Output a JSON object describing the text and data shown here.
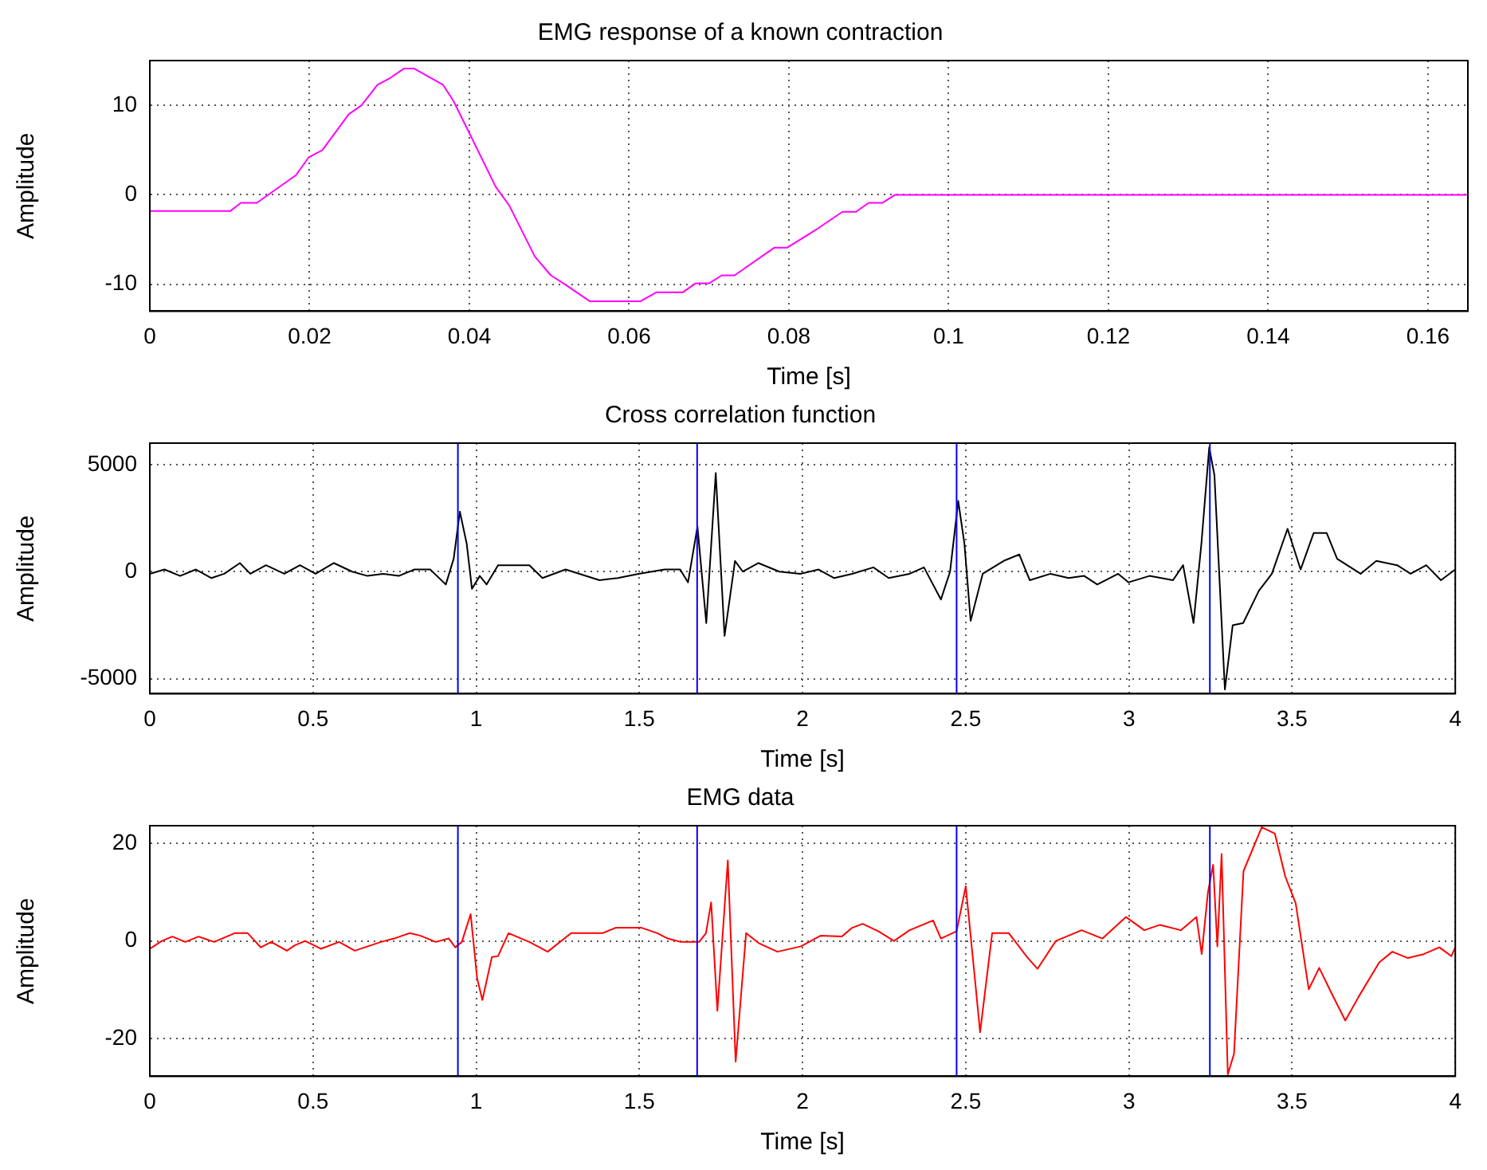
{
  "chart_data": [
    {
      "type": "line",
      "title": "EMG response of a known contraction",
      "xlabel": "Time [s]",
      "ylabel": "Amplitude",
      "xlim": [
        0,
        0.165
      ],
      "xticks": [
        0,
        0.02,
        0.04,
        0.06,
        0.08,
        0.1,
        0.12,
        0.14,
        0.16
      ],
      "ylim": [
        -13,
        15
      ],
      "yticks": [
        -10,
        0,
        10
      ],
      "grid": true,
      "line_style": "solid",
      "series": [
        {
          "color": "#ff00ff",
          "x": [
            0,
            0.0101,
            0.0114,
            0.0134,
            0.0183,
            0.0199,
            0.0216,
            0.0249,
            0.0265,
            0.0285,
            0.03,
            0.0318,
            0.0331,
            0.0367,
            0.038,
            0.04,
            0.0433,
            0.045,
            0.0482,
            0.0502,
            0.0518,
            0.0551,
            0.0614,
            0.0634,
            0.0667,
            0.0683,
            0.07,
            0.0716,
            0.0732,
            0.0782,
            0.0798,
            0.0834,
            0.0867,
            0.0884,
            0.09,
            0.0917,
            0.0933,
            0.165
          ],
          "values": [
            -1.8,
            -1.8,
            -0.9,
            -0.9,
            2.2,
            4.2,
            5,
            9,
            10,
            12.3,
            13,
            14.1,
            14.1,
            12.3,
            10.5,
            6.9,
            0.9,
            -1.2,
            -6.9,
            -9,
            -9.9,
            -11.9,
            -11.9,
            -10.9,
            -10.9,
            -9.9,
            -9.9,
            -9,
            -9,
            -5.9,
            -5.9,
            -3.9,
            -1.9,
            -1.9,
            -0.9,
            -0.9,
            0,
            0
          ]
        }
      ]
    },
    {
      "type": "line",
      "title": "Cross correlation function",
      "xlabel": "Time [s]",
      "ylabel": "Amplitude",
      "xlim": [
        0,
        4
      ],
      "xticks": [
        0,
        0.5,
        1,
        1.5,
        2,
        2.5,
        3,
        3.5,
        4
      ],
      "ylim": [
        -5700,
        6000
      ],
      "yticks": [
        -5000,
        0,
        5000
      ],
      "grid": true,
      "line_style": "solid",
      "ref_lines": [
        {
          "axis": "x",
          "value": 0.944,
          "color": "#0000ff"
        },
        {
          "axis": "x",
          "value": 1.677,
          "color": "#0000ff"
        },
        {
          "axis": "x",
          "value": 2.472,
          "color": "#0000ff"
        },
        {
          "axis": "x",
          "value": 3.248,
          "color": "#0000ff"
        }
      ],
      "series": [
        {
          "color": "#000000",
          "x": [
            0,
            0.045,
            0.093,
            0.141,
            0.189,
            0.228,
            0.276,
            0.308,
            0.356,
            0.412,
            0.46,
            0.508,
            0.564,
            0.62,
            0.667,
            0.715,
            0.763,
            0.811,
            0.859,
            0.907,
            0.931,
            0.95,
            0.971,
            0.987,
            1.011,
            1.032,
            1.067,
            1.163,
            1.203,
            1.274,
            1.378,
            1.434,
            1.498,
            1.577,
            1.625,
            1.649,
            1.678,
            1.705,
            1.734,
            1.761,
            1.793,
            1.817,
            1.865,
            1.929,
            1.993,
            2.049,
            2.097,
            2.152,
            2.217,
            2.264,
            2.328,
            2.372,
            2.424,
            2.452,
            2.477,
            2.496,
            2.515,
            2.552,
            2.616,
            2.664,
            2.696,
            2.76,
            2.815,
            2.863,
            2.903,
            2.967,
            2.999,
            3.063,
            3.135,
            3.166,
            3.198,
            3.222,
            3.246,
            3.262,
            3.294,
            3.318,
            3.35,
            3.398,
            3.438,
            3.486,
            3.526,
            3.566,
            3.606,
            3.638,
            3.71,
            3.758,
            3.822,
            3.863,
            3.911,
            3.956,
            4
          ],
          "values": [
            -100,
            100,
            -200,
            100,
            -300,
            -100,
            400,
            -100,
            300,
            -100,
            300,
            -100,
            400,
            0,
            -200,
            -100,
            -200,
            100,
            100,
            -600,
            600,
            2800,
            1300,
            -800,
            -200,
            -600,
            300,
            300,
            -300,
            100,
            -400,
            -300,
            -100,
            100,
            100,
            -500,
            2100,
            -2400,
            4600,
            -3000,
            500,
            0,
            400,
            0,
            -100,
            100,
            -300,
            -100,
            200,
            -300,
            -100,
            200,
            -1300,
            0,
            3300,
            1300,
            -2300,
            -100,
            500,
            800,
            -400,
            -100,
            -300,
            -200,
            -600,
            -100,
            -500,
            -200,
            -400,
            300,
            -2400,
            1300,
            5800,
            4500,
            -5500,
            -2500,
            -2400,
            -900,
            -100,
            2000,
            100,
            1800,
            1800,
            600,
            -100,
            500,
            300,
            -100,
            300,
            -400,
            100
          ]
        }
      ]
    },
    {
      "type": "line",
      "title": "EMG data",
      "xlabel": "Time [s]",
      "ylabel": "Amplitude",
      "xlim": [
        0,
        4
      ],
      "xticks": [
        0,
        0.5,
        1,
        1.5,
        2,
        2.5,
        3,
        3.5,
        4
      ],
      "ylim": [
        -27.7,
        23.6
      ],
      "yticks": [
        -20,
        0,
        20
      ],
      "grid": true,
      "line_style": "solid",
      "ref_lines": [
        {
          "axis": "x",
          "value": 0.944,
          "color": "#0000ff"
        },
        {
          "axis": "x",
          "value": 1.677,
          "color": "#0000ff"
        },
        {
          "axis": "x",
          "value": 2.472,
          "color": "#0000ff"
        },
        {
          "axis": "x",
          "value": 3.248,
          "color": "#0000ff"
        }
      ],
      "series": [
        {
          "color": "#ff0000",
          "x": [
            0,
            0.037,
            0.069,
            0.109,
            0.149,
            0.197,
            0.26,
            0.3,
            0.34,
            0.372,
            0.396,
            0.42,
            0.444,
            0.476,
            0.524,
            0.58,
            0.628,
            0.668,
            0.708,
            0.748,
            0.796,
            0.828,
            0.876,
            0.916,
            0.936,
            0.956,
            0.983,
            1.003,
            1.019,
            1.048,
            1.067,
            1.099,
            1.163,
            1.219,
            1.291,
            1.387,
            1.427,
            1.507,
            1.555,
            1.587,
            1.627,
            1.683,
            1.704,
            1.72,
            1.739,
            1.771,
            1.795,
            1.827,
            1.867,
            1.923,
            1.995,
            2.056,
            2.12,
            2.152,
            2.184,
            2.232,
            2.28,
            2.328,
            2.4,
            2.424,
            2.472,
            2.5,
            2.528,
            2.544,
            2.581,
            2.632,
            2.688,
            2.72,
            2.776,
            2.855,
            2.919,
            2.991,
            3.047,
            3.095,
            3.159,
            3.207,
            3.223,
            3.242,
            3.258,
            3.271,
            3.284,
            3.303,
            3.322,
            3.351,
            3.407,
            3.447,
            3.479,
            3.511,
            3.551,
            3.583,
            3.623,
            3.663,
            3.703,
            3.767,
            3.807,
            3.855,
            3.903,
            3.951,
            3.988,
            4
          ],
          "values": [
            -1.6,
            0,
            0.9,
            -0.2,
            0.9,
            -0.2,
            1.6,
            1.6,
            -1.3,
            -0.2,
            -1.1,
            -2,
            -0.9,
            0,
            -1.6,
            -0.2,
            -2,
            -1.1,
            -0.2,
            0.5,
            1.6,
            1.1,
            -0.2,
            0.5,
            -1.3,
            -0.2,
            5.5,
            -7.7,
            -12.1,
            -3.3,
            -3.1,
            1.6,
            -0.2,
            -2.2,
            1.6,
            1.6,
            2.7,
            2.7,
            1.6,
            0.5,
            -0.2,
            -0.2,
            1.6,
            7.9,
            -14.3,
            16.5,
            -24.7,
            1.6,
            -0.5,
            -2.2,
            -1.1,
            1.1,
            0.9,
            2.7,
            3.5,
            2,
            0,
            2.2,
            4.2,
            0.5,
            2,
            11.2,
            -7.7,
            -18.7,
            1.6,
            1.6,
            -3.3,
            -5.7,
            0,
            2.2,
            0.5,
            4.9,
            2.2,
            3.3,
            2.2,
            4.9,
            -2.7,
            9.9,
            15.6,
            -1.1,
            17.8,
            -27.3,
            -23.1,
            14.3,
            23.3,
            22,
            13.2,
            7.7,
            -9.9,
            -5.5,
            -11,
            -16.3,
            -11.5,
            -4.4,
            -2.2,
            -3.5,
            -2.7,
            -1.3,
            -3.1,
            -1.3
          ]
        }
      ]
    }
  ]
}
